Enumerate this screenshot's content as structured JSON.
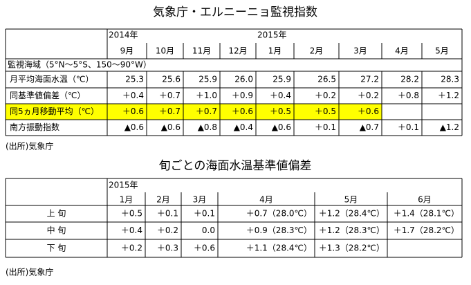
{
  "title1": "気象庁・エルニーニョ監視指数",
  "table1": {
    "years": [
      "2014年",
      null,
      null,
      null,
      "2015年",
      null,
      null,
      null,
      null
    ],
    "months": [
      "9月",
      "10月",
      "11月",
      "12月",
      "1月",
      "2月",
      "3月",
      "4月",
      "5月"
    ],
    "region": "監視海域（5°N～5°S、150～90°W）",
    "rows": [
      {
        "label": "月平均海面水温（℃）",
        "cells": [
          "25.3",
          "25.6",
          "25.9",
          "26.0",
          "25.9",
          "26.5",
          "27.2",
          "28.2",
          "28.3"
        ]
      },
      {
        "label": "同基準値偏差（℃）",
        "cells": [
          "＋0.4",
          "＋0.7",
          "＋1.0",
          "＋0.9",
          "＋0.4",
          "＋0.2",
          "＋0.2",
          "＋0.8",
          "＋1.2"
        ]
      },
      {
        "label": "同5ヵ月移動平均（℃）",
        "cells": [
          "＋0.6",
          "＋0.7",
          "＋0.7",
          "＋0.6",
          "＋0.5",
          "＋0.5",
          "＋0.6",
          null,
          null
        ]
      },
      {
        "label": "南方振動指数",
        "cells": [
          "▲0.6",
          "▲0.6",
          "▲0.8",
          "▲0.4",
          "▲0.6",
          "＋0.1",
          "▲0.7",
          "＋0.1",
          "▲1.2"
        ]
      }
    ]
  },
  "source1": "(出所)気象庁",
  "title2": "旬ごとの海面水温基準値偏差",
  "table2": {
    "years": [
      "2015年",
      null,
      null,
      null,
      null,
      null
    ],
    "months": [
      "1月",
      "2月",
      "3月",
      "4月",
      "5月",
      "6月"
    ],
    "rows": [
      {
        "label": "上 旬",
        "cells": [
          "＋0.5",
          "＋0.1",
          "＋0.1",
          "＋0.7（28.0℃）",
          "＋1.2（28.4℃）",
          "＋1.4（28.1℃）"
        ]
      },
      {
        "label": "中 旬",
        "cells": [
          "＋0.4",
          "＋0.2",
          "0.0",
          "＋0.9（28.3℃）",
          "＋1.2（28.3℃）",
          "＋1.7（28.2℃）"
        ]
      },
      {
        "label": "下 旬",
        "cells": [
          "＋0.2",
          "＋0.3",
          "＋0.6",
          "＋1.1（28.4℃）",
          "＋1.3（28.2℃）",
          null
        ]
      }
    ]
  },
  "source2": "(出所)気象庁"
}
